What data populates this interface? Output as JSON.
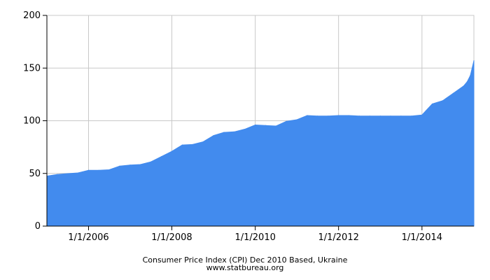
{
  "chart_data": {
    "type": "area",
    "title": "Consumer Price Index (CPI) Dec 2010 Based, Ukraine",
    "subtitle": "www.statbureau.org",
    "xlabel": "",
    "ylabel": "",
    "xlim": [
      "2005-01-01",
      "2015-04-01"
    ],
    "ylim": [
      0,
      200
    ],
    "grid": true,
    "legend": "none",
    "color": "#428bee",
    "x_ticks": [
      {
        "date": "2006-01-01",
        "label": "1/1/2006"
      },
      {
        "date": "2008-01-01",
        "label": "1/1/2008"
      },
      {
        "date": "2010-01-01",
        "label": "1/1/2010"
      },
      {
        "date": "2012-01-01",
        "label": "1/1/2012"
      },
      {
        "date": "2014-01-01",
        "label": "1/1/2014"
      }
    ],
    "y_ticks": [
      {
        "value": 0,
        "label": "0"
      },
      {
        "value": 50,
        "label": "50"
      },
      {
        "value": 100,
        "label": "100"
      },
      {
        "value": 150,
        "label": "150"
      },
      {
        "value": 200,
        "label": "200"
      }
    ],
    "series": [
      {
        "x": [
          "2005-01-01",
          "2005-04-01",
          "2005-07-01",
          "2005-10-01",
          "2006-01-01",
          "2006-04-01",
          "2006-07-01",
          "2006-10-01",
          "2007-01-01",
          "2007-04-01",
          "2007-07-01",
          "2007-10-01",
          "2008-01-01",
          "2008-04-01",
          "2008-07-01",
          "2008-10-01",
          "2009-01-01",
          "2009-04-01",
          "2009-07-01",
          "2009-10-01",
          "2010-01-01",
          "2010-04-01",
          "2010-07-01",
          "2010-10-01",
          "2011-01-01",
          "2011-04-01",
          "2011-07-01",
          "2011-10-01",
          "2012-01-01",
          "2012-04-01",
          "2012-07-01",
          "2012-10-01",
          "2013-01-01",
          "2013-04-01",
          "2013-07-01",
          "2013-10-01",
          "2014-01-01",
          "2014-04-01",
          "2014-07-01",
          "2014-10-01",
          "2015-01-01",
          "2015-02-01",
          "2015-03-01",
          "2015-04-01"
        ],
        "values": [
          47.5,
          49.0,
          49.8,
          50.5,
          53.0,
          53.0,
          53.5,
          57.0,
          58.0,
          58.5,
          61.0,
          66.0,
          71.0,
          77.0,
          77.5,
          80.0,
          86.0,
          89.0,
          89.5,
          92.0,
          96.0,
          95.5,
          95.0,
          99.5,
          101.0,
          105.0,
          104.5,
          104.5,
          105.0,
          105.0,
          104.5,
          104.5,
          104.5,
          104.5,
          104.5,
          104.5,
          105.5,
          116.0,
          119.0,
          126.0,
          133.0,
          137.0,
          143.0,
          157.0
        ]
      }
    ]
  }
}
